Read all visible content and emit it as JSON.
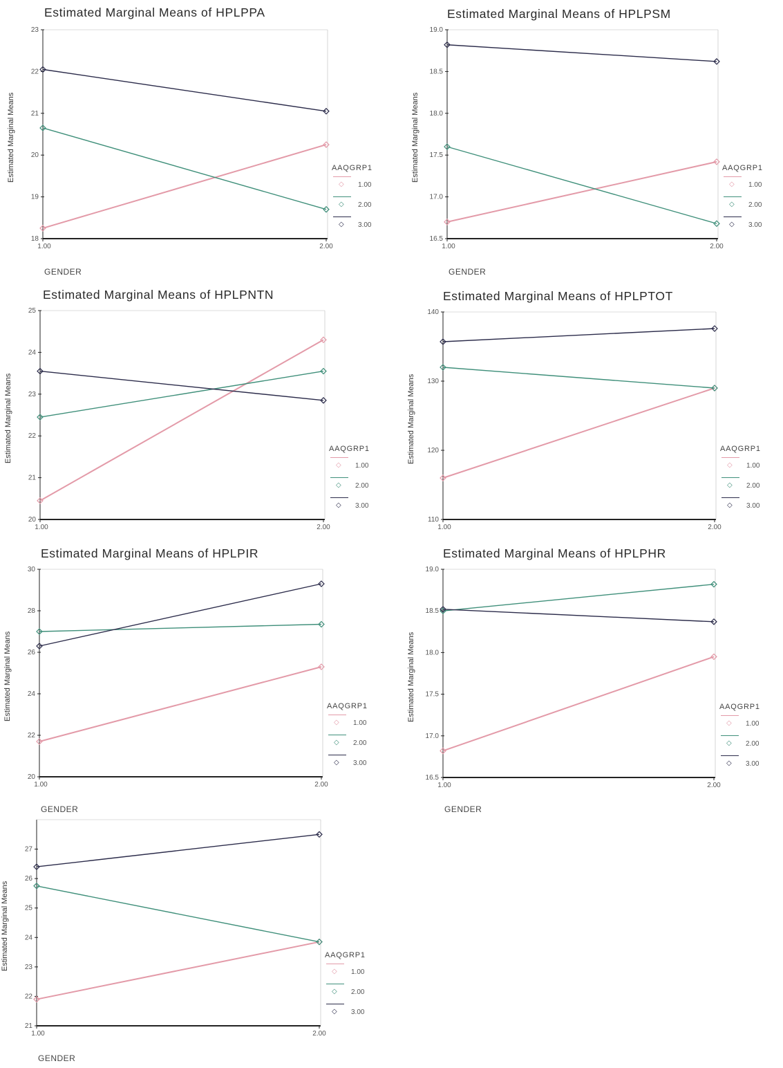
{
  "style": {
    "colors": {
      "1.00": "#e39aa8",
      "2.00": "#3f8f7a",
      "3.00": "#2b2b4a"
    },
    "axis_color": "#222222"
  },
  "chart_data": [
    {
      "type": "line",
      "title": "Estimated Marginal Means of HPLPPA",
      "xlabel": "GENDER",
      "ylabel": "Estimated Marginal Means",
      "x": [
        "1.00",
        "2.00"
      ],
      "ylim": [
        18,
        23
      ],
      "yticks": [
        "18",
        "19",
        "20",
        "21",
        "22",
        "23"
      ],
      "legend_title": "AAQGRP1",
      "legend_position": "right",
      "series": [
        {
          "name": "1.00",
          "values": [
            18.25,
            20.25
          ]
        },
        {
          "name": "2.00",
          "values": [
            20.65,
            18.7
          ]
        },
        {
          "name": "3.00",
          "values": [
            22.05,
            21.05
          ]
        }
      ]
    },
    {
      "type": "line",
      "title": "Estimated Marginal Means of HPLPSM",
      "xlabel": "GENDER",
      "ylabel": "Estimated Marginal Means",
      "x": [
        "1.00",
        "2.00"
      ],
      "ylim": [
        16.5,
        19.0
      ],
      "yticks": [
        "16.5",
        "17.0",
        "17.5",
        "18.0",
        "18.5",
        "19.0"
      ],
      "legend_title": "AAQGRP1",
      "legend_position": "right",
      "series": [
        {
          "name": "1.00",
          "values": [
            16.7,
            17.42
          ]
        },
        {
          "name": "2.00",
          "values": [
            17.6,
            16.68
          ]
        },
        {
          "name": "3.00",
          "values": [
            18.82,
            18.62
          ]
        }
      ]
    },
    {
      "type": "line",
      "title": "Estimated Marginal Means of HPLPNTN",
      "xlabel": "",
      "ylabel": "Estimated Marginal Means",
      "x": [
        "1.00",
        "2.00"
      ],
      "ylim": [
        20,
        25
      ],
      "yticks": [
        "20",
        "21",
        "22",
        "23",
        "24",
        "25"
      ],
      "legend_title": "AAQGRP1",
      "legend_position": "right",
      "series": [
        {
          "name": "1.00",
          "values": [
            20.45,
            24.3
          ]
        },
        {
          "name": "2.00",
          "values": [
            22.45,
            23.55
          ]
        },
        {
          "name": "3.00",
          "values": [
            23.55,
            22.85
          ]
        }
      ]
    },
    {
      "type": "line",
      "title": "Estimated Marginal Means of HPLPTOT",
      "xlabel": "",
      "ylabel": "Estimated Marginal Means",
      "x": [
        "1.00",
        "2.00"
      ],
      "ylim": [
        110,
        140
      ],
      "yticks": [
        "110",
        "120",
        "130",
        "140"
      ],
      "legend_title": "AAQGRP1",
      "legend_position": "right",
      "series": [
        {
          "name": "1.00",
          "values": [
            116,
            129
          ]
        },
        {
          "name": "2.00",
          "values": [
            132,
            129
          ]
        },
        {
          "name": "3.00",
          "values": [
            135.7,
            137.6
          ]
        }
      ]
    },
    {
      "type": "line",
      "title": "Estimated Marginal Means of HPLPIR",
      "xlabel": "GENDER",
      "ylabel": "Estimated Marginal Means",
      "x": [
        "1.00",
        "2.00"
      ],
      "ylim": [
        20,
        30
      ],
      "yticks": [
        "20",
        "22",
        "24",
        "26",
        "28",
        "30"
      ],
      "legend_title": "AAQGRP1",
      "legend_position": "right",
      "series": [
        {
          "name": "1.00",
          "values": [
            21.7,
            25.3
          ]
        },
        {
          "name": "2.00",
          "values": [
            27.0,
            27.35
          ]
        },
        {
          "name": "3.00",
          "values": [
            26.3,
            29.3
          ]
        }
      ]
    },
    {
      "type": "line",
      "title": "Estimated Marginal Means of HPLPHR",
      "xlabel": "GENDER",
      "ylabel": "Estimated Marginal Means",
      "x": [
        "1.00",
        "2.00"
      ],
      "ylim": [
        16.5,
        19.0
      ],
      "yticks": [
        "16.5",
        "17.0",
        "17.5",
        "18.0",
        "18.5",
        "19.0"
      ],
      "legend_title": "AAQGRP1",
      "legend_position": "right",
      "series": [
        {
          "name": "1.00",
          "values": [
            16.82,
            17.95
          ]
        },
        {
          "name": "2.00",
          "values": [
            18.5,
            18.82
          ]
        },
        {
          "name": "3.00",
          "values": [
            18.52,
            18.37
          ]
        }
      ]
    },
    {
      "type": "line",
      "title": "",
      "xlabel": "GENDER",
      "ylabel": "Estimated Marginal Means",
      "x": [
        "1.00",
        "2.00"
      ],
      "ylim": [
        21,
        28
      ],
      "yticks": [
        "21",
        "22",
        "23",
        "24",
        "25",
        "26",
        "27"
      ],
      "legend_title": "AAQGRP1",
      "legend_position": "right",
      "series": [
        {
          "name": "1.00",
          "values": [
            21.9,
            23.85
          ]
        },
        {
          "name": "2.00",
          "values": [
            25.75,
            23.85
          ]
        },
        {
          "name": "3.00",
          "values": [
            26.4,
            27.5
          ]
        }
      ]
    }
  ]
}
